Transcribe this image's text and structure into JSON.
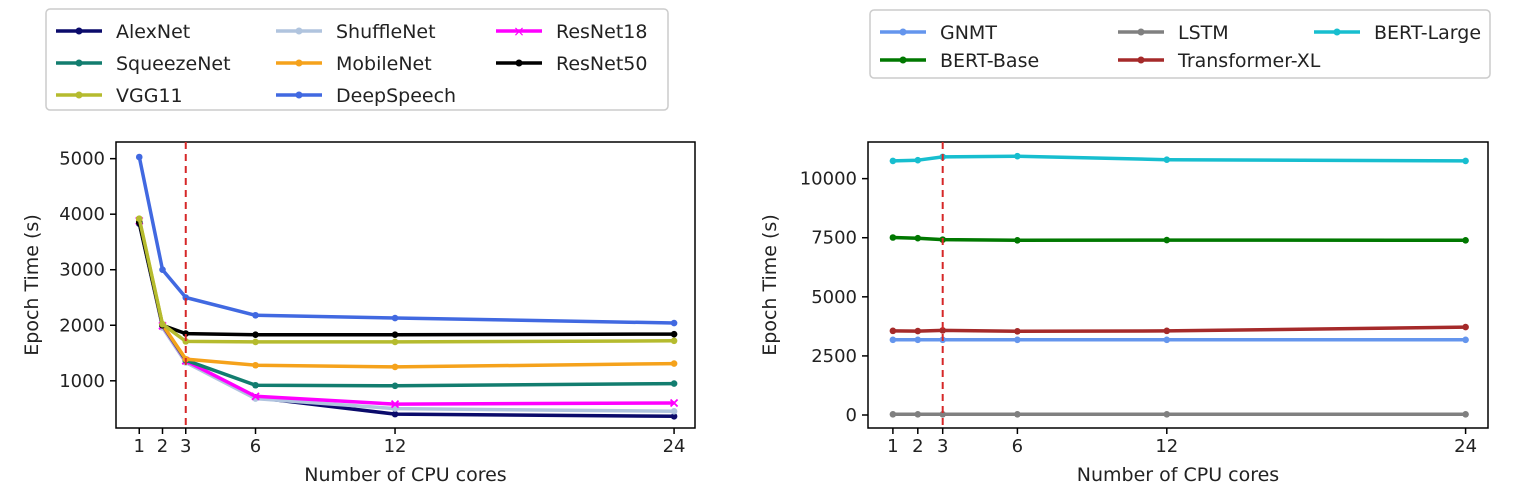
{
  "chart_data": [
    {
      "type": "line",
      "xlabel": "Number of CPU cores",
      "ylabel": "Epoch Time (s)",
      "x": [
        1,
        2,
        3,
        6,
        12,
        24
      ],
      "xticks": [
        1,
        2,
        3,
        6,
        12,
        24
      ],
      "yticks": [
        1000,
        2000,
        3000,
        4000,
        5000
      ],
      "xlim": [
        0.0,
        24.9
      ],
      "ylim": [
        150,
        5300
      ],
      "vline": {
        "x": 3,
        "color": "#d62728",
        "style": "dashed"
      },
      "legend": {
        "placement": "top",
        "columns": 3
      },
      "series": [
        {
          "name": "AlexNet",
          "color": "#0b0b6b",
          "marker": "circle",
          "values": [
            3830,
            1980,
            1340,
            700,
            400,
            360
          ]
        },
        {
          "name": "ShuffleNet",
          "color": "#b0c4de",
          "marker": "circle",
          "values": [
            3870,
            1960,
            1330,
            680,
            500,
            450
          ]
        },
        {
          "name": "ResNet18",
          "color": "#ff00ff",
          "marker": "x",
          "values": [
            3880,
            1990,
            1360,
            720,
            580,
            600
          ]
        },
        {
          "name": "SqueezeNet",
          "color": "#127d6f",
          "marker": "circle",
          "values": [
            3860,
            2000,
            1370,
            920,
            910,
            950
          ]
        },
        {
          "name": "MobileNet",
          "color": "#f5a21b",
          "marker": "circle",
          "values": [
            3900,
            2010,
            1390,
            1280,
            1250,
            1310
          ]
        },
        {
          "name": "ResNet50",
          "color": "#000000",
          "marker": "circle",
          "values": [
            3850,
            2000,
            1850,
            1830,
            1830,
            1840
          ]
        },
        {
          "name": "VGG11",
          "color": "#b5bb2e",
          "marker": "circle",
          "values": [
            3920,
            2020,
            1710,
            1700,
            1700,
            1720
          ]
        },
        {
          "name": "DeepSpeech",
          "color": "#4169e1",
          "marker": "circle",
          "values": [
            5030,
            3000,
            2500,
            2180,
            2130,
            2040
          ]
        }
      ]
    },
    {
      "type": "line",
      "xlabel": "Number of CPU cores",
      "ylabel": "Epoch Time (s)",
      "x": [
        1,
        2,
        3,
        6,
        12,
        24
      ],
      "xticks": [
        1,
        2,
        3,
        6,
        12,
        24
      ],
      "yticks": [
        0,
        2500,
        5000,
        7500,
        10000
      ],
      "ytick_labels": [
        "0",
        "2500",
        "5000",
        "7500",
        "10000"
      ],
      "xlim": [
        0.0,
        24.9
      ],
      "ylim": [
        -550,
        11550
      ],
      "vline": {
        "x": 3,
        "color": "#d62728",
        "style": "dashed"
      },
      "legend": {
        "placement": "top",
        "columns": 3
      },
      "series": [
        {
          "name": "GNMT",
          "color": "#6495ed",
          "marker": "circle",
          "values": [
            3180,
            3180,
            3180,
            3180,
            3180,
            3180
          ]
        },
        {
          "name": "LSTM",
          "color": "#808080",
          "marker": "circle",
          "values": [
            30,
            30,
            30,
            30,
            30,
            30
          ]
        },
        {
          "name": "BERT-Large",
          "color": "#17becf",
          "marker": "circle",
          "values": [
            10750,
            10780,
            10920,
            10950,
            10800,
            10750
          ]
        },
        {
          "name": "BERT-Base",
          "color": "#007800",
          "marker": "circle",
          "values": [
            7510,
            7480,
            7420,
            7390,
            7400,
            7390
          ]
        },
        {
          "name": "Transformer-XL",
          "color": "#a52a2a",
          "marker": "circle",
          "values": [
            3560,
            3550,
            3580,
            3540,
            3560,
            3720
          ]
        }
      ]
    }
  ]
}
